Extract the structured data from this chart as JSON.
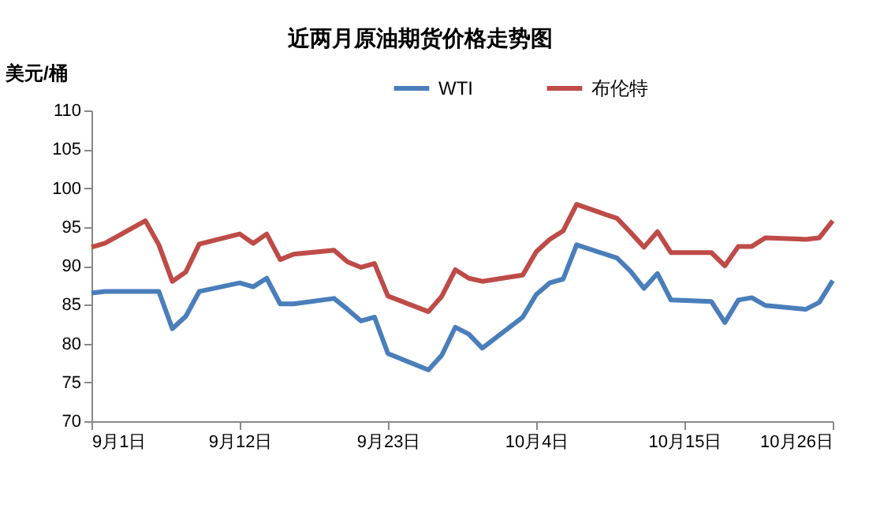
{
  "chart_data": {
    "type": "line",
    "title": "近两月原油期货价格走势图",
    "ylabel": "美元/桶",
    "x": [
      "--09-01",
      "--09-02",
      "--09-05",
      "--09-06",
      "--09-07",
      "--09-08",
      "--09-09",
      "--09-12",
      "--09-13",
      "--09-14",
      "--09-15",
      "--09-16",
      "--09-19",
      "--09-20",
      "--09-21",
      "--09-22",
      "--09-23",
      "--09-26",
      "--09-27",
      "--09-28",
      "--09-29",
      "--09-30",
      "--10-03",
      "--10-04",
      "--10-05",
      "--10-06",
      "--10-07",
      "--10-10",
      "--10-11",
      "--10-12",
      "--10-13",
      "--10-14",
      "--10-17",
      "--10-18",
      "--10-19",
      "--10-20",
      "--10-21",
      "--10-24",
      "--10-25",
      "--10-26"
    ],
    "series": [
      {
        "name": "WTI",
        "color": "#4a7ebb",
        "values": [
          86.5,
          86.7,
          86.7,
          86.7,
          81.9,
          83.5,
          86.7,
          87.8,
          87.3,
          88.4,
          85.1,
          85.1,
          85.8,
          84.4,
          82.9,
          83.4,
          78.7,
          76.6,
          78.5,
          82.1,
          81.2,
          79.4,
          83.4,
          86.3,
          87.8,
          88.3,
          92.7,
          91.0,
          89.3,
          87.1,
          89.0,
          85.6,
          85.4,
          82.7,
          85.6,
          85.9,
          84.9,
          84.4,
          85.3,
          88.1
        ]
      },
      {
        "name": "布伦特",
        "color": "#be4b48",
        "values": [
          92.4,
          92.9,
          95.8,
          92.7,
          88.0,
          89.2,
          92.8,
          94.1,
          92.9,
          94.1,
          90.8,
          91.5,
          92.0,
          90.5,
          89.8,
          90.3,
          86.1,
          84.1,
          86.1,
          89.5,
          88.4,
          88.0,
          88.8,
          91.8,
          93.4,
          94.5,
          97.9,
          96.1,
          94.3,
          92.4,
          94.4,
          91.7,
          91.7,
          90.0,
          92.5,
          92.5,
          93.6,
          93.4,
          93.6,
          95.8
        ]
      }
    ],
    "xlim": [
      "--09-01",
      "--10-26"
    ],
    "xticks": [
      {
        "value": "--09-01",
        "label": "9月1日"
      },
      {
        "value": "--09-12",
        "label": "9月12日"
      },
      {
        "value": "--09-23",
        "label": "9月23日"
      },
      {
        "value": "--10-04",
        "label": "10月4日"
      },
      {
        "value": "--10-15",
        "label": "10月15日"
      },
      {
        "value": "--10-26",
        "label": "10月26日"
      }
    ],
    "ylim": [
      70,
      110
    ],
    "yticks": [
      70,
      75,
      80,
      85,
      90,
      95,
      100,
      105,
      110
    ],
    "legend": "top",
    "grid": false
  }
}
